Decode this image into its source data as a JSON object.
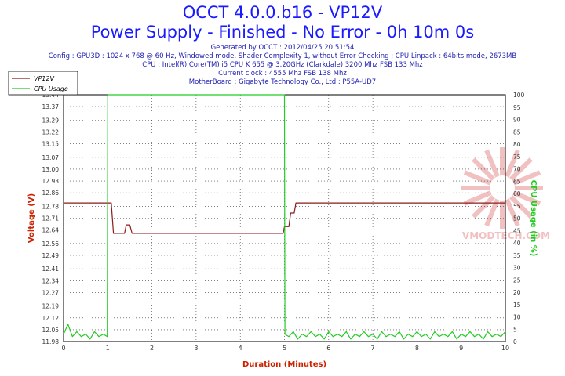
{
  "header": {
    "title": "OCCT 4.0.0.b16 - VP12V",
    "subtitle": "Power Supply - Finished - No Error - 0h 10m 0s",
    "info_lines": [
      "Generated by OCCT : 2012/04/25 20:51:54",
      "Config : GPU3D : 1024 x 768 @ 60 Hz, Windowed mode, Shader Complexity 1, without Error Checking ; CPU:Linpack : 64bits mode, 2673MB",
      "CPU : Intel(R) Core(TM) i5 CPU K 655 @ 3.20GHz (Clarkdale) 3200 Mhz FSB 133 Mhz",
      "Current clock : 4555 Mhz FSB 138 Mhz",
      "MotherBoard : Gigabyte Technology Co., Ltd.: P55A-UD7"
    ]
  },
  "watermark": "VMODTECH.COM",
  "chart_data": {
    "type": "line",
    "xlabel": "Duration (Minutes)",
    "ylabel": "Voltage (V)",
    "y2label": "CPU Usage (in %)",
    "xlim": [
      0,
      10
    ],
    "ylim": [
      11.98,
      13.44
    ],
    "y2lim": [
      0,
      100
    ],
    "grid": true,
    "legend_position": "top-left",
    "xticks": [
      0,
      1,
      2,
      3,
      4,
      5,
      6,
      7,
      8,
      9,
      10
    ],
    "yticks": [
      11.98,
      12.05,
      12.12,
      12.19,
      12.27,
      12.34,
      12.41,
      12.49,
      12.56,
      12.64,
      12.71,
      12.78,
      12.86,
      12.93,
      13.0,
      13.07,
      13.15,
      13.22,
      13.29,
      13.37,
      13.44
    ],
    "ytick_labels": [
      "11.98",
      "12.05",
      "12.12",
      "12.19",
      "12.27",
      "12.34",
      "12.41",
      "12.49",
      "12.56",
      "12.64",
      "12.71",
      "12.78",
      "12.86",
      "12.93",
      "13.00",
      "13.07",
      "13.15",
      "13.22",
      "13.29",
      "13.37",
      "13.44"
    ],
    "y2ticks": [
      0,
      5,
      10,
      15,
      20,
      25,
      30,
      35,
      40,
      45,
      50,
      55,
      60,
      65,
      70,
      75,
      80,
      85,
      90,
      95,
      100
    ],
    "colors": {
      "vp12v": "#8b1a1a",
      "cpu": "#22cc22",
      "title": "#1a1aff",
      "axis_label": "#cc2200"
    },
    "series": [
      {
        "name": "VP12V",
        "axis": "left",
        "x": [
          0,
          1.08,
          1.13,
          1.38,
          1.42,
          1.5,
          1.55,
          4.97,
          5.0,
          5.1,
          5.14,
          5.22,
          5.26,
          10
        ],
        "y": [
          12.8,
          12.8,
          12.62,
          12.62,
          12.67,
          12.67,
          12.62,
          12.62,
          12.66,
          12.66,
          12.74,
          12.74,
          12.8,
          12.8
        ]
      },
      {
        "name": "CPU Usage",
        "axis": "right",
        "x": [
          0,
          0.1,
          0.2,
          0.3,
          0.4,
          0.5,
          0.6,
          0.7,
          0.8,
          0.9,
          0.99,
          1.0,
          1.01,
          4.99,
          5.0,
          5.01,
          5.1,
          5.2,
          5.3,
          5.4,
          5.5,
          5.6,
          5.7,
          5.8,
          5.9,
          6.0,
          6.1,
          6.2,
          6.3,
          6.4,
          6.5,
          6.6,
          6.7,
          6.8,
          6.9,
          7.0,
          7.1,
          7.2,
          7.3,
          7.4,
          7.5,
          7.6,
          7.7,
          7.8,
          7.9,
          8.0,
          8.1,
          8.2,
          8.3,
          8.4,
          8.5,
          8.6,
          8.7,
          8.8,
          8.9,
          9.0,
          9.1,
          9.2,
          9.3,
          9.4,
          9.5,
          9.6,
          9.7,
          9.8,
          9.9,
          10
        ],
        "y": [
          3,
          7,
          2,
          4,
          2,
          3,
          1,
          4,
          2,
          3,
          2,
          100,
          100,
          100,
          100,
          3,
          2,
          4,
          1,
          3,
          2,
          4,
          2,
          3,
          1,
          4,
          2,
          3,
          2,
          4,
          1,
          3,
          2,
          4,
          2,
          3,
          1,
          4,
          2,
          3,
          2,
          4,
          1,
          3,
          2,
          4,
          2,
          3,
          1,
          4,
          2,
          3,
          2,
          4,
          1,
          3,
          2,
          4,
          2,
          3,
          1,
          4,
          2,
          3,
          2,
          4
        ]
      }
    ]
  }
}
